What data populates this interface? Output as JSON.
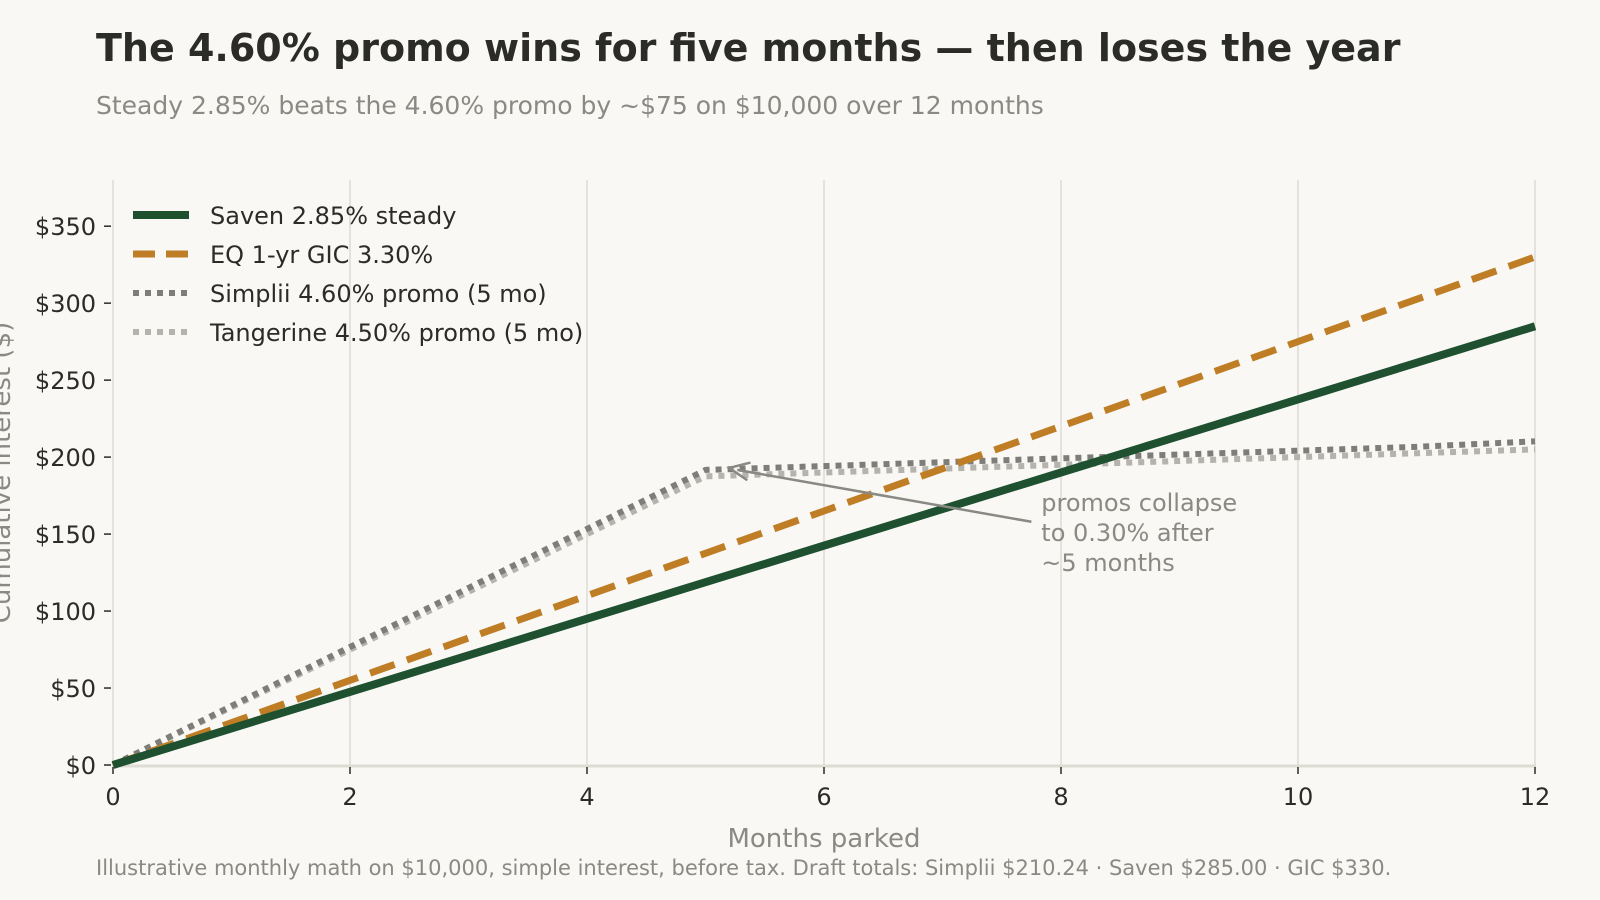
{
  "header": {
    "title": "The 4.60% promo wins for five months — then loses the year",
    "subtitle": "Steady 2.85% beats the 4.60% promo by ~$75 on $10,000 over 12 months"
  },
  "footnote": "Illustrative monthly math on $10,000, simple interest, before tax. Draft totals: Simplii $210.24 · Saven $285.00 · GIC $330.",
  "chart_data": {
    "type": "line",
    "xlabel": "Months parked",
    "ylabel": "Cumulative interest ($)",
    "xlim": [
      0,
      12
    ],
    "ylim": [
      0,
      380
    ],
    "xticks": [
      0,
      2,
      4,
      6,
      8,
      10,
      12
    ],
    "xtick_labels": [
      "0",
      "2",
      "4",
      "6",
      "8",
      "10",
      "12"
    ],
    "yticks": [
      0,
      50,
      100,
      150,
      200,
      250,
      300,
      350
    ],
    "ytick_labels": [
      "$0",
      "$50",
      "$100",
      "$150",
      "$200",
      "$250",
      "$300",
      "$350"
    ],
    "grid": "vertical",
    "legend_position": "top-left",
    "x": [
      0,
      1,
      2,
      3,
      4,
      5,
      6,
      7,
      8,
      9,
      10,
      11,
      12
    ],
    "series": [
      {
        "name": "Saven 2.85% steady",
        "style": "solid",
        "color": "#1f5130",
        "values": [
          0,
          23.75,
          47.5,
          71.25,
          95,
          118.75,
          142.5,
          166.25,
          190,
          213.75,
          237.5,
          261.25,
          285
        ]
      },
      {
        "name": "EQ 1-yr GIC 3.30%",
        "style": "dashed",
        "color": "#bf7e26",
        "values": [
          0,
          27.5,
          55,
          82.5,
          110,
          137.5,
          165,
          192.5,
          220,
          247.5,
          275,
          302.5,
          330
        ]
      },
      {
        "name": "Simplii 4.60% promo (5 mo)",
        "style": "dotted",
        "color": "#7d7d79",
        "values": [
          0,
          38.33,
          76.67,
          115,
          153.33,
          191.67,
          194.17,
          196.67,
          199.17,
          201.67,
          204.17,
          206.67,
          210.24
        ]
      },
      {
        "name": "Tangerine 4.50% promo (5 mo)",
        "style": "dotted",
        "color": "#b4b3ae",
        "values": [
          0,
          37.5,
          75,
          112.5,
          150,
          187.5,
          190,
          192.5,
          195,
          197.5,
          200,
          202.5,
          205
        ]
      }
    ],
    "annotation": {
      "text_lines": [
        "promos collapse",
        "to 0.30% after",
        "~5 months"
      ],
      "arrow_to": {
        "x": 5.2,
        "y": 193
      },
      "arrow_from": {
        "x": 7.75,
        "y": 158
      },
      "text_at": {
        "x": 7.8,
        "y": 165
      }
    }
  }
}
